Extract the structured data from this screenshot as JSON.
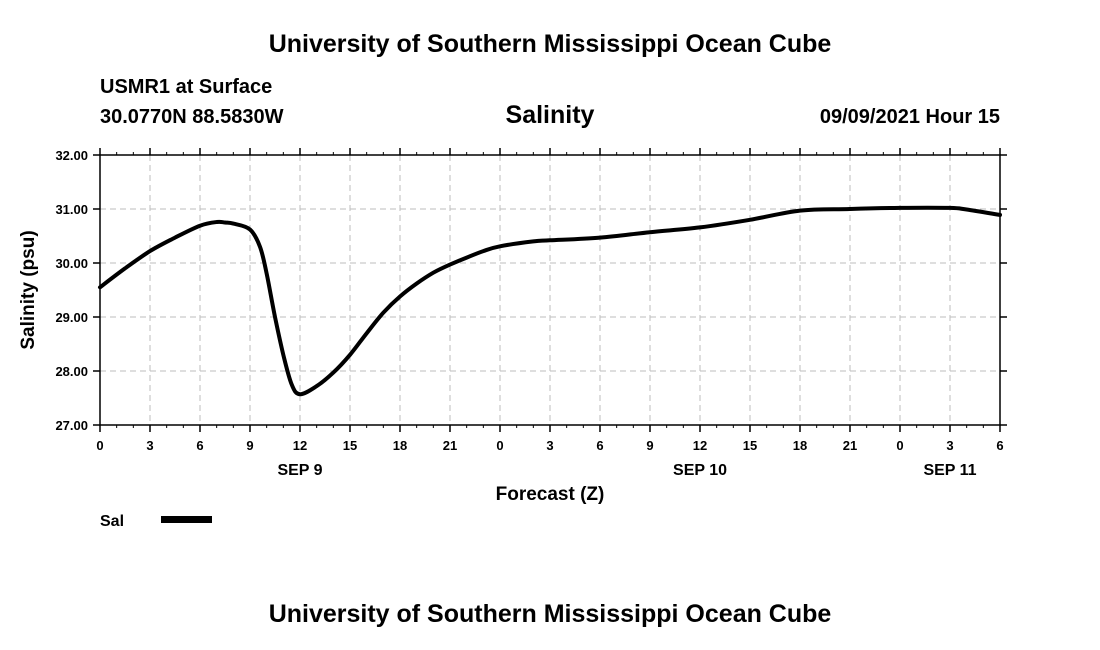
{
  "header": {
    "top_title": "University of Southern Mississippi Ocean Cube",
    "station": "USMR1 at Surface",
    "coords": "30.0770N  88.5830W",
    "variable": "Salinity",
    "timestamp": "09/09/2021 Hour 15"
  },
  "footer": {
    "bottom_title": "University of Southern Mississippi Ocean Cube"
  },
  "chart_data": {
    "type": "line",
    "title": "Salinity",
    "xlabel": "Forecast (Z)",
    "ylabel": "Salinity (psu)",
    "xlim": [
      0,
      54
    ],
    "ylim": [
      27,
      32
    ],
    "y_ticks": [
      "27.00",
      "28.00",
      "29.00",
      "30.00",
      "31.00",
      "32.00"
    ],
    "x_tick_labels": [
      "0",
      "3",
      "6",
      "9",
      "12",
      "15",
      "18",
      "21",
      "0",
      "3",
      "6",
      "9",
      "12",
      "15",
      "18",
      "21",
      "0",
      "3",
      "6"
    ],
    "day_labels": [
      {
        "label": "SEP 9",
        "hour": 12
      },
      {
        "label": "SEP 10",
        "hour": 36
      },
      {
        "label": "SEP 11",
        "hour": 51
      }
    ],
    "grid": true,
    "legend": [
      {
        "name": "Sal",
        "color": "#000000"
      }
    ],
    "series": [
      {
        "name": "Sal",
        "color": "#000000",
        "x": [
          0,
          1.5,
          3,
          4.5,
          6,
          7,
          7.5,
          8,
          9,
          9.6,
          10,
          10.5,
          11,
          11.5,
          12,
          13,
          14,
          15,
          16,
          17,
          18,
          19,
          20,
          21,
          22,
          23,
          24,
          26,
          27,
          30,
          33,
          36,
          39,
          42,
          45,
          48,
          51,
          52,
          54
        ],
        "y": [
          29.55,
          29.9,
          30.22,
          30.47,
          30.69,
          30.76,
          30.75,
          30.73,
          30.62,
          30.3,
          29.8,
          29.0,
          28.3,
          27.75,
          27.57,
          27.72,
          27.97,
          28.3,
          28.7,
          29.08,
          29.38,
          29.62,
          29.82,
          29.97,
          30.1,
          30.22,
          30.31,
          30.4,
          30.42,
          30.47,
          30.57,
          30.66,
          30.8,
          30.97,
          31.0,
          31.02,
          31.02,
          30.99,
          30.89
        ]
      }
    ]
  }
}
